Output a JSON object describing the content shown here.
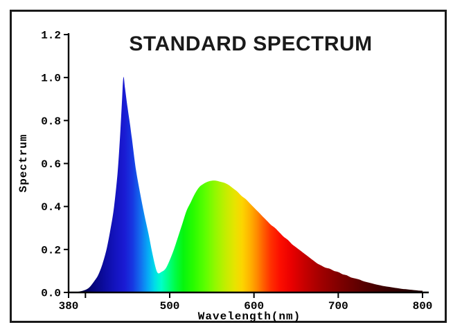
{
  "figure": {
    "border_color": "#1a1a1a",
    "background_color": "#ffffff"
  },
  "chart_data": {
    "type": "area",
    "title": "STANDARD SPECTRUM",
    "xlabel": "Wavelength(nm)",
    "ylabel": "Spectrum",
    "xlim": [
      380,
      800
    ],
    "ylim": [
      0.0,
      1.2
    ],
    "grid": false,
    "legend": "none",
    "x_ticks": [
      {
        "value": 380,
        "label": "380"
      },
      {
        "value": 400,
        "label": ""
      },
      {
        "value": 500,
        "label": "500"
      },
      {
        "value": 600,
        "label": "600"
      },
      {
        "value": 700,
        "label": "700"
      },
      {
        "value": 800,
        "label": "800"
      }
    ],
    "y_ticks": [
      {
        "value": 0.0,
        "label": "0.0"
      },
      {
        "value": 0.2,
        "label": "0.2"
      },
      {
        "value": 0.4,
        "label": "0.4"
      },
      {
        "value": 0.6,
        "label": "0.6"
      },
      {
        "value": 0.8,
        "label": "0.8"
      },
      {
        "value": 1.0,
        "label": "1.0"
      },
      {
        "value": 1.2,
        "label": "1.2"
      }
    ],
    "series": [
      {
        "name": "spectrum",
        "x": [
          380,
          388,
          394,
          400,
          405,
          410,
          415,
          420,
          425,
          430,
          434,
          438,
          441,
          443,
          445,
          447,
          450,
          453,
          455,
          460,
          465,
          470,
          475,
          479,
          483,
          486,
          490,
          495,
          500,
          505,
          510,
          515,
          520,
          525,
          530,
          535,
          540,
          545,
          550,
          555,
          560,
          565,
          570,
          575,
          580,
          585,
          590,
          595,
          600,
          605,
          610,
          615,
          620,
          625,
          630,
          635,
          640,
          645,
          650,
          655,
          660,
          665,
          670,
          675,
          680,
          685,
          690,
          695,
          700,
          705,
          710,
          715,
          720,
          725,
          730,
          735,
          740,
          745,
          750,
          755,
          760,
          765,
          770,
          775,
          780,
          785,
          790,
          795,
          800
        ],
        "y": [
          0,
          0.002,
          0.005,
          0.012,
          0.025,
          0.05,
          0.08,
          0.13,
          0.2,
          0.3,
          0.4,
          0.55,
          0.72,
          0.86,
          1.0,
          0.95,
          0.86,
          0.78,
          0.72,
          0.57,
          0.46,
          0.36,
          0.27,
          0.19,
          0.12,
          0.09,
          0.095,
          0.11,
          0.15,
          0.2,
          0.26,
          0.32,
          0.38,
          0.42,
          0.46,
          0.49,
          0.505,
          0.515,
          0.52,
          0.52,
          0.515,
          0.51,
          0.5,
          0.485,
          0.47,
          0.45,
          0.435,
          0.415,
          0.395,
          0.375,
          0.355,
          0.335,
          0.315,
          0.3,
          0.28,
          0.26,
          0.245,
          0.225,
          0.21,
          0.195,
          0.18,
          0.165,
          0.15,
          0.135,
          0.125,
          0.115,
          0.11,
          0.1,
          0.095,
          0.085,
          0.08,
          0.07,
          0.065,
          0.06,
          0.052,
          0.047,
          0.042,
          0.037,
          0.033,
          0.029,
          0.026,
          0.023,
          0.02,
          0.017,
          0.015,
          0.013,
          0.011,
          0.009,
          0.008
        ]
      }
    ],
    "fill_gradient": [
      {
        "wavelength": 380,
        "color": "#000014"
      },
      {
        "wavelength": 398,
        "color": "#00004a"
      },
      {
        "wavelength": 408,
        "color": "#05057a"
      },
      {
        "wavelength": 422,
        "color": "#0c0c9e"
      },
      {
        "wavelength": 436,
        "color": "#1414c0"
      },
      {
        "wavelength": 446,
        "color": "#1a1ad2"
      },
      {
        "wavelength": 456,
        "color": "#1738e2"
      },
      {
        "wavelength": 466,
        "color": "#1272f0"
      },
      {
        "wavelength": 474,
        "color": "#06a8f6"
      },
      {
        "wavelength": 482,
        "color": "#00dce8"
      },
      {
        "wavelength": 490,
        "color": "#00ffc8"
      },
      {
        "wavelength": 498,
        "color": "#00ff8a"
      },
      {
        "wavelength": 506,
        "color": "#00fd4a"
      },
      {
        "wavelength": 516,
        "color": "#06f60e"
      },
      {
        "wavelength": 528,
        "color": "#28fc00"
      },
      {
        "wavelength": 542,
        "color": "#5cff00"
      },
      {
        "wavelength": 554,
        "color": "#92f800"
      },
      {
        "wavelength": 566,
        "color": "#c2ee00"
      },
      {
        "wavelength": 577,
        "color": "#e6e400"
      },
      {
        "wavelength": 586,
        "color": "#fcd500"
      },
      {
        "wavelength": 595,
        "color": "#ffb400"
      },
      {
        "wavelength": 603,
        "color": "#ff8e00"
      },
      {
        "wavelength": 611,
        "color": "#ff6000"
      },
      {
        "wavelength": 620,
        "color": "#ff3000"
      },
      {
        "wavelength": 631,
        "color": "#fc0e00"
      },
      {
        "wavelength": 644,
        "color": "#ea0000"
      },
      {
        "wavelength": 660,
        "color": "#c60000"
      },
      {
        "wavelength": 680,
        "color": "#a00000"
      },
      {
        "wavelength": 702,
        "color": "#7e0000"
      },
      {
        "wavelength": 728,
        "color": "#5a0000"
      },
      {
        "wavelength": 756,
        "color": "#3a0000"
      },
      {
        "wavelength": 780,
        "color": "#2a0000"
      },
      {
        "wavelength": 800,
        "color": "#200000"
      }
    ]
  }
}
